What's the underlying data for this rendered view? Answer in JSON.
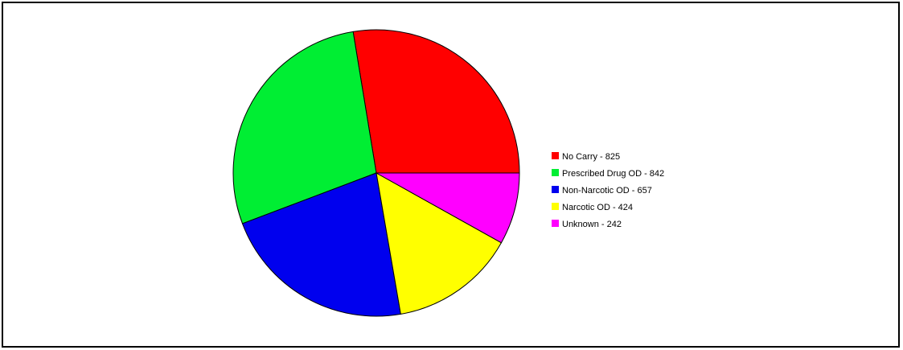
{
  "chart_data": {
    "type": "pie",
    "title": "",
    "legend": "right",
    "slices": [
      {
        "label": "No Carry - 825",
        "value": 825,
        "color": "#ff0000"
      },
      {
        "label": "Prescribed Drug OD - 842",
        "value": 842,
        "color": "#00ee33"
      },
      {
        "label": "Non-Narcotic OD - 657",
        "value": 657,
        "color": "#0000ee"
      },
      {
        "label": "Narcotic OD - 424",
        "value": 424,
        "color": "#ffff00"
      },
      {
        "label": "Unknown - 242",
        "value": 242,
        "color": "#ff00ff"
      }
    ]
  }
}
